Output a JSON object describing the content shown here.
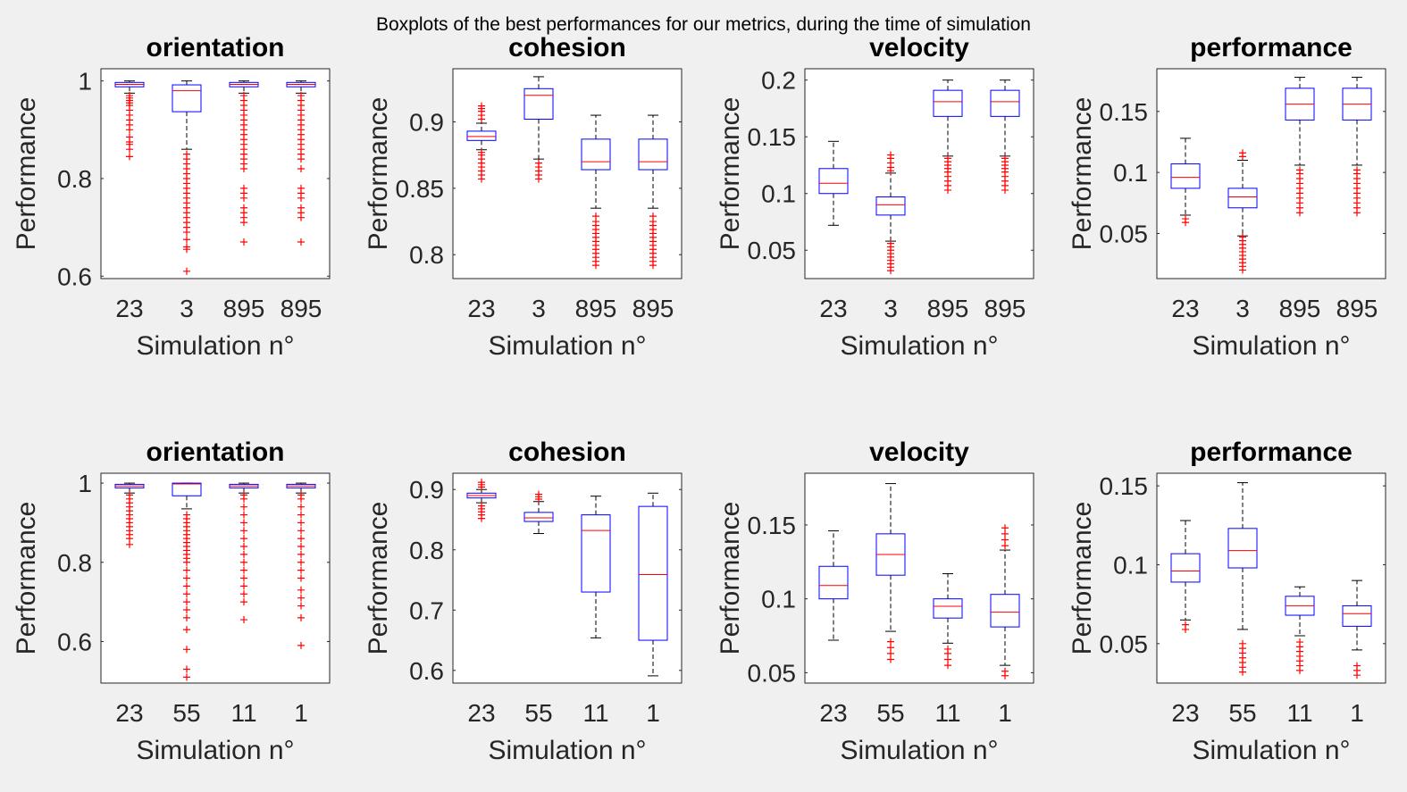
{
  "figure": {
    "suptitle": "Boxplots of the best performances for our metrics, during the time of simulation"
  },
  "colors": {
    "background": "#f0f0f0",
    "axes_bg": "#ffffff",
    "box": "#0000ff",
    "median": "#ff0000",
    "outlier": "#ff0000",
    "whisker": "#000000"
  },
  "chart_data": [
    {
      "type": "boxplot",
      "title": "orientation",
      "xlabel": "Simulation n°",
      "ylabel": "Performance",
      "categories": [
        "23",
        "3",
        "895",
        "895"
      ],
      "ylim": [
        0.595,
        1.025
      ],
      "yticks": [
        0.6,
        0.8,
        1
      ],
      "ytick_labels": [
        "0.6",
        "0.8",
        "1"
      ],
      "boxes": [
        {
          "whislo": 0.975,
          "q1": 0.988,
          "med": 0.993,
          "q3": 0.997,
          "whishi": 1.0,
          "outliers": [
            0.845,
            0.86,
            0.87,
            0.875,
            0.885,
            0.9,
            0.91,
            0.92,
            0.93,
            0.94,
            0.95,
            0.955,
            0.96,
            0.965,
            0.97
          ]
        },
        {
          "whislo": 0.86,
          "q1": 0.937,
          "med": 0.98,
          "q3": 0.992,
          "whishi": 1.0,
          "outliers": [
            0.61,
            0.655,
            0.66,
            0.675,
            0.69,
            0.7,
            0.71,
            0.72,
            0.73,
            0.74,
            0.75,
            0.76,
            0.77,
            0.78,
            0.79,
            0.8,
            0.81,
            0.82,
            0.83,
            0.84,
            0.85
          ]
        },
        {
          "whislo": 0.975,
          "q1": 0.988,
          "med": 0.993,
          "q3": 0.997,
          "whishi": 1.0,
          "outliers": [
            0.67,
            0.71,
            0.72,
            0.73,
            0.74,
            0.76,
            0.77,
            0.78,
            0.82,
            0.83,
            0.84,
            0.85,
            0.86,
            0.87,
            0.88,
            0.89,
            0.9,
            0.91,
            0.92,
            0.93,
            0.94,
            0.95,
            0.96,
            0.97
          ]
        },
        {
          "whislo": 0.975,
          "q1": 0.988,
          "med": 0.993,
          "q3": 0.997,
          "whishi": 1.0,
          "outliers": [
            0.67,
            0.72,
            0.73,
            0.74,
            0.76,
            0.77,
            0.78,
            0.82,
            0.84,
            0.85,
            0.86,
            0.87,
            0.88,
            0.89,
            0.9,
            0.91,
            0.92,
            0.93,
            0.94,
            0.95,
            0.96,
            0.97
          ]
        }
      ]
    },
    {
      "type": "boxplot",
      "title": "cohesion",
      "xlabel": "Simulation n°",
      "ylabel": "Performance",
      "categories": [
        "23",
        "3",
        "895",
        "895"
      ],
      "ylim": [
        0.782,
        0.94
      ],
      "yticks": [
        0.8,
        0.85,
        0.9
      ],
      "ytick_labels": [
        "0.8",
        "0.85",
        "0.9"
      ],
      "boxes": [
        {
          "whislo": 0.879,
          "q1": 0.886,
          "med": 0.889,
          "q3": 0.893,
          "whishi": 0.899,
          "outliers": [
            0.857,
            0.86,
            0.863,
            0.866,
            0.869,
            0.872,
            0.875,
            0.877,
            0.902,
            0.905,
            0.908,
            0.91,
            0.912
          ]
        },
        {
          "whislo": 0.872,
          "q1": 0.902,
          "med": 0.92,
          "q3": 0.925,
          "whishi": 0.934,
          "outliers": [
            0.857,
            0.86,
            0.863,
            0.866,
            0.869
          ]
        },
        {
          "whislo": 0.835,
          "q1": 0.864,
          "med": 0.87,
          "q3": 0.887,
          "whishi": 0.905,
          "outliers": [
            0.792,
            0.795,
            0.798,
            0.801,
            0.804,
            0.807,
            0.81,
            0.813,
            0.816,
            0.819,
            0.822,
            0.825,
            0.829
          ]
        },
        {
          "whislo": 0.835,
          "q1": 0.864,
          "med": 0.87,
          "q3": 0.887,
          "whishi": 0.905,
          "outliers": [
            0.792,
            0.795,
            0.798,
            0.801,
            0.804,
            0.807,
            0.81,
            0.813,
            0.816,
            0.819,
            0.822,
            0.825,
            0.829
          ]
        }
      ]
    },
    {
      "type": "boxplot",
      "title": "velocity",
      "xlabel": "Simulation n°",
      "ylabel": "Performance",
      "categories": [
        "23",
        "3",
        "895",
        "895"
      ],
      "ylim": [
        0.025,
        0.21
      ],
      "yticks": [
        0.05,
        0.1,
        0.15,
        0.2
      ],
      "ytick_labels": [
        "0.05",
        "0.1",
        "0.15",
        "0.2"
      ],
      "boxes": [
        {
          "whislo": 0.072,
          "q1": 0.1,
          "med": 0.109,
          "q3": 0.122,
          "whishi": 0.146,
          "outliers": []
        },
        {
          "whislo": 0.058,
          "q1": 0.081,
          "med": 0.09,
          "q3": 0.097,
          "whishi": 0.118,
          "outliers": [
            0.032,
            0.035,
            0.038,
            0.041,
            0.044,
            0.047,
            0.05,
            0.053,
            0.056,
            0.12,
            0.123,
            0.127,
            0.131,
            0.134
          ]
        },
        {
          "whislo": 0.133,
          "q1": 0.168,
          "med": 0.181,
          "q3": 0.191,
          "whishi": 0.2,
          "outliers": [
            0.103,
            0.107,
            0.111,
            0.115,
            0.119,
            0.122,
            0.125,
            0.128,
            0.131
          ]
        },
        {
          "whislo": 0.133,
          "q1": 0.168,
          "med": 0.181,
          "q3": 0.191,
          "whishi": 0.2,
          "outliers": [
            0.103,
            0.107,
            0.111,
            0.115,
            0.119,
            0.122,
            0.125,
            0.128,
            0.131
          ]
        }
      ]
    },
    {
      "type": "boxplot",
      "title": "performance",
      "xlabel": "Simulation n°",
      "ylabel": "Performance",
      "categories": [
        "23",
        "3",
        "895",
        "895"
      ],
      "ylim": [
        0.013,
        0.185
      ],
      "yticks": [
        0.05,
        0.1,
        0.15
      ],
      "ytick_labels": [
        "0.05",
        "0.1",
        "0.15"
      ],
      "boxes": [
        {
          "whislo": 0.065,
          "q1": 0.087,
          "med": 0.096,
          "q3": 0.107,
          "whishi": 0.128,
          "outliers": [
            0.059,
            0.062
          ]
        },
        {
          "whislo": 0.048,
          "q1": 0.071,
          "med": 0.08,
          "q3": 0.087,
          "whishi": 0.11,
          "outliers": [
            0.02,
            0.023,
            0.026,
            0.029,
            0.032,
            0.035,
            0.038,
            0.041,
            0.044,
            0.047,
            0.113,
            0.116
          ]
        },
        {
          "whislo": 0.106,
          "q1": 0.143,
          "med": 0.156,
          "q3": 0.169,
          "whishi": 0.178,
          "outliers": [
            0.067,
            0.071,
            0.075,
            0.079,
            0.083,
            0.087,
            0.091,
            0.095,
            0.099,
            0.102
          ]
        },
        {
          "whislo": 0.106,
          "q1": 0.143,
          "med": 0.156,
          "q3": 0.169,
          "whishi": 0.178,
          "outliers": [
            0.067,
            0.071,
            0.075,
            0.079,
            0.083,
            0.087,
            0.091,
            0.095,
            0.099,
            0.102
          ]
        }
      ]
    },
    {
      "type": "boxplot",
      "title": "orientation",
      "xlabel": "Simulation n°",
      "ylabel": "Performance",
      "categories": [
        "23",
        "55",
        "11",
        "1"
      ],
      "ylim": [
        0.495,
        1.025
      ],
      "yticks": [
        0.6,
        0.8,
        1
      ],
      "ytick_labels": [
        "0.6",
        "0.8",
        "1"
      ],
      "boxes": [
        {
          "whislo": 0.975,
          "q1": 0.988,
          "med": 0.993,
          "q3": 0.997,
          "whishi": 1.0,
          "outliers": [
            0.845,
            0.86,
            0.87,
            0.88,
            0.89,
            0.9,
            0.91,
            0.92,
            0.93,
            0.94,
            0.95,
            0.96,
            0.97
          ]
        },
        {
          "whislo": 0.935,
          "q1": 0.968,
          "med": 0.998,
          "q3": 1.0,
          "whishi": 1.0,
          "outliers": [
            0.51,
            0.53,
            0.58,
            0.63,
            0.66,
            0.68,
            0.7,
            0.72,
            0.74,
            0.76,
            0.78,
            0.8,
            0.81,
            0.82,
            0.83,
            0.84,
            0.85,
            0.86,
            0.87,
            0.88,
            0.89,
            0.9,
            0.91,
            0.92
          ]
        },
        {
          "whislo": 0.975,
          "q1": 0.988,
          "med": 0.993,
          "q3": 0.997,
          "whishi": 1.0,
          "outliers": [
            0.655,
            0.7,
            0.72,
            0.74,
            0.76,
            0.78,
            0.8,
            0.82,
            0.84,
            0.86,
            0.88,
            0.9,
            0.92,
            0.94,
            0.96,
            0.97
          ]
        },
        {
          "whislo": 0.975,
          "q1": 0.988,
          "med": 0.993,
          "q3": 0.997,
          "whishi": 1.0,
          "outliers": [
            0.59,
            0.66,
            0.69,
            0.71,
            0.73,
            0.76,
            0.78,
            0.8,
            0.82,
            0.84,
            0.86,
            0.88,
            0.9,
            0.92,
            0.94,
            0.96,
            0.97
          ]
        }
      ]
    },
    {
      "type": "boxplot",
      "title": "cohesion",
      "xlabel": "Simulation n°",
      "ylabel": "Performance",
      "categories": [
        "23",
        "55",
        "11",
        "1"
      ],
      "ylim": [
        0.579,
        0.927
      ],
      "yticks": [
        0.6,
        0.7,
        0.8,
        0.9
      ],
      "ytick_labels": [
        "0.6",
        "0.7",
        "0.8",
        "0.9"
      ],
      "boxes": [
        {
          "whislo": 0.878,
          "q1": 0.886,
          "med": 0.89,
          "q3": 0.894,
          "whishi": 0.9,
          "outliers": [
            0.852,
            0.858,
            0.863,
            0.868,
            0.873,
            0.904,
            0.908,
            0.912
          ]
        },
        {
          "whislo": 0.827,
          "q1": 0.847,
          "med": 0.853,
          "q3": 0.862,
          "whishi": 0.88,
          "outliers": [
            0.884,
            0.888,
            0.892
          ]
        },
        {
          "whislo": 0.654,
          "q1": 0.73,
          "med": 0.832,
          "q3": 0.858,
          "whishi": 0.889,
          "outliers": []
        },
        {
          "whislo": 0.591,
          "q1": 0.65,
          "med": 0.759,
          "q3": 0.872,
          "whishi": 0.894,
          "outliers": []
        }
      ]
    },
    {
      "type": "boxplot",
      "title": "velocity",
      "xlabel": "Simulation n°",
      "ylabel": "Performance",
      "categories": [
        "23",
        "55",
        "11",
        "1"
      ],
      "ylim": [
        0.043,
        0.185
      ],
      "yticks": [
        0.05,
        0.1,
        0.15
      ],
      "ytick_labels": [
        "0.05",
        "0.1",
        "0.15"
      ],
      "boxes": [
        {
          "whislo": 0.072,
          "q1": 0.1,
          "med": 0.109,
          "q3": 0.122,
          "whishi": 0.146,
          "outliers": []
        },
        {
          "whislo": 0.078,
          "q1": 0.116,
          "med": 0.13,
          "q3": 0.144,
          "whishi": 0.178,
          "outliers": [
            0.059,
            0.063,
            0.067,
            0.071
          ]
        },
        {
          "whislo": 0.07,
          "q1": 0.087,
          "med": 0.095,
          "q3": 0.1,
          "whishi": 0.117,
          "outliers": [
            0.055,
            0.059,
            0.063,
            0.066
          ]
        },
        {
          "whislo": 0.055,
          "q1": 0.081,
          "med": 0.091,
          "q3": 0.103,
          "whishi": 0.133,
          "outliers": [
            0.048,
            0.051,
            0.136,
            0.14,
            0.144,
            0.148
          ]
        }
      ]
    },
    {
      "type": "boxplot",
      "title": "performance",
      "xlabel": "Simulation n°",
      "ylabel": "Performance",
      "categories": [
        "23",
        "55",
        "11",
        "1"
      ],
      "ylim": [
        0.025,
        0.158
      ],
      "yticks": [
        0.05,
        0.1,
        0.15
      ],
      "ytick_labels": [
        "0.05",
        "0.1",
        "0.15"
      ],
      "boxes": [
        {
          "whislo": 0.065,
          "q1": 0.089,
          "med": 0.096,
          "q3": 0.107,
          "whishi": 0.128,
          "outliers": [
            0.059,
            0.062
          ]
        },
        {
          "whislo": 0.059,
          "q1": 0.098,
          "med": 0.109,
          "q3": 0.123,
          "whishi": 0.152,
          "outliers": [
            0.032,
            0.035,
            0.038,
            0.041,
            0.044,
            0.047,
            0.05
          ]
        },
        {
          "whislo": 0.055,
          "q1": 0.068,
          "med": 0.074,
          "q3": 0.08,
          "whishi": 0.086,
          "outliers": [
            0.033,
            0.036,
            0.039,
            0.042,
            0.045,
            0.048,
            0.051
          ]
        },
        {
          "whislo": 0.046,
          "q1": 0.061,
          "med": 0.069,
          "q3": 0.074,
          "whishi": 0.09,
          "outliers": [
            0.03,
            0.033,
            0.036
          ]
        }
      ]
    }
  ]
}
